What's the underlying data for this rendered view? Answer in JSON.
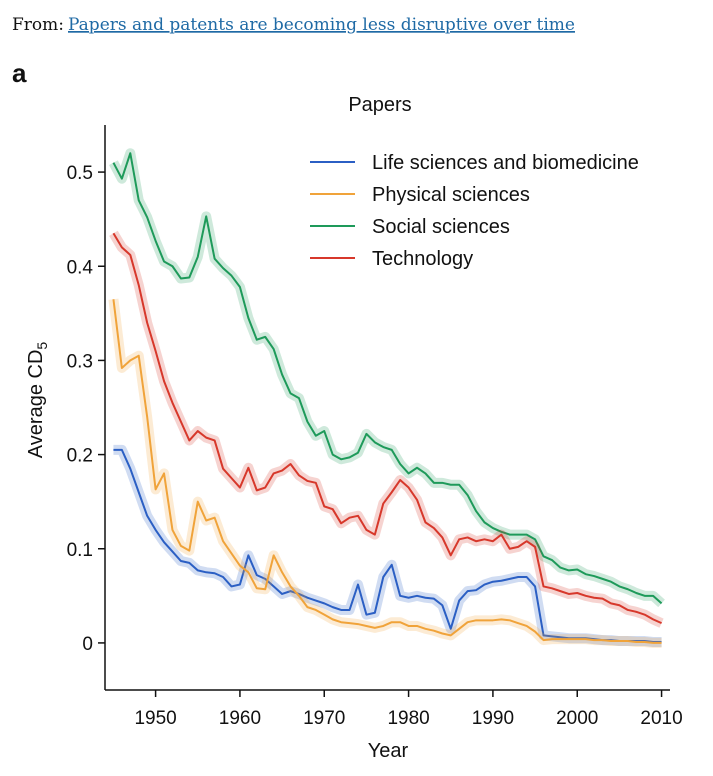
{
  "header": {
    "prefix": "From:",
    "link": "Papers and patents are becoming less disruptive over time"
  },
  "panel_label": "a",
  "chart_data": {
    "type": "line",
    "title": "Papers",
    "x_label": "Year",
    "y_label": "Average CD",
    "y_label_subscript": "5",
    "x": [
      1945,
      1946,
      1947,
      1948,
      1949,
      1950,
      1951,
      1952,
      1953,
      1954,
      1955,
      1956,
      1957,
      1958,
      1959,
      1960,
      1961,
      1962,
      1963,
      1964,
      1965,
      1966,
      1967,
      1968,
      1969,
      1970,
      1971,
      1972,
      1973,
      1974,
      1975,
      1976,
      1977,
      1978,
      1979,
      1980,
      1981,
      1982,
      1983,
      1984,
      1985,
      1986,
      1987,
      1988,
      1989,
      1990,
      1991,
      1992,
      1993,
      1994,
      1995,
      1996,
      1997,
      1998,
      1999,
      2000,
      2001,
      2002,
      2003,
      2004,
      2005,
      2006,
      2007,
      2008,
      2009,
      2010
    ],
    "xlim": [
      1944,
      2011
    ],
    "xticks": [
      1950,
      1960,
      1970,
      1980,
      1990,
      2000,
      2010
    ],
    "ylim": [
      -0.05,
      0.55
    ],
    "yticks": [
      0,
      0.1,
      0.2,
      0.3,
      0.4,
      0.5
    ],
    "legend": "upper right",
    "series": [
      {
        "name": "Life sciences and biomedicine",
        "color": "#2b5fc4",
        "values": [
          0.205,
          0.205,
          0.185,
          0.16,
          0.135,
          0.12,
          0.107,
          0.097,
          0.087,
          0.085,
          0.077,
          0.075,
          0.074,
          0.07,
          0.06,
          0.062,
          0.093,
          0.072,
          0.068,
          0.06,
          0.052,
          0.055,
          0.052,
          0.048,
          0.045,
          0.042,
          0.038,
          0.035,
          0.035,
          0.062,
          0.03,
          0.032,
          0.07,
          0.083,
          0.05,
          0.048,
          0.05,
          0.048,
          0.047,
          0.04,
          0.015,
          0.045,
          0.055,
          0.056,
          0.062,
          0.065,
          0.066,
          0.068,
          0.07,
          0.07,
          0.06,
          0.008,
          0.007,
          0.006,
          0.005,
          0.005,
          0.005,
          0.004,
          0.003,
          0.003,
          0.002,
          0.002,
          0.002,
          0.002,
          0.001,
          0.001
        ]
      },
      {
        "name": "Physical sciences",
        "color": "#f0a33a",
        "values": [
          0.365,
          0.292,
          0.3,
          0.305,
          0.24,
          0.163,
          0.18,
          0.12,
          0.103,
          0.098,
          0.15,
          0.13,
          0.133,
          0.108,
          0.095,
          0.082,
          0.075,
          0.058,
          0.057,
          0.093,
          0.075,
          0.06,
          0.05,
          0.038,
          0.035,
          0.03,
          0.025,
          0.022,
          0.021,
          0.02,
          0.018,
          0.016,
          0.018,
          0.022,
          0.022,
          0.018,
          0.018,
          0.015,
          0.013,
          0.01,
          0.008,
          0.015,
          0.022,
          0.024,
          0.024,
          0.024,
          0.025,
          0.024,
          0.021,
          0.018,
          0.012,
          0.003,
          0.004,
          0.004,
          0.004,
          0.004,
          0.004,
          0.003,
          0.003,
          0.002,
          0.002,
          0.002,
          0.001,
          0.001,
          0,
          0
        ]
      },
      {
        "name": "Social sciences",
        "color": "#1e9a5a",
        "values": [
          0.51,
          0.493,
          0.52,
          0.47,
          0.452,
          0.427,
          0.405,
          0.4,
          0.387,
          0.388,
          0.41,
          0.453,
          0.408,
          0.398,
          0.39,
          0.378,
          0.345,
          0.322,
          0.325,
          0.312,
          0.285,
          0.265,
          0.26,
          0.235,
          0.22,
          0.225,
          0.2,
          0.195,
          0.197,
          0.202,
          0.222,
          0.213,
          0.208,
          0.205,
          0.19,
          0.18,
          0.186,
          0.18,
          0.17,
          0.17,
          0.168,
          0.168,
          0.157,
          0.14,
          0.128,
          0.122,
          0.118,
          0.115,
          0.115,
          0.115,
          0.11,
          0.092,
          0.088,
          0.08,
          0.077,
          0.078,
          0.073,
          0.071,
          0.068,
          0.065,
          0.06,
          0.057,
          0.053,
          0.05,
          0.05,
          0.042
        ]
      },
      {
        "name": "Technology",
        "color": "#d7382b",
        "values": [
          0.435,
          0.42,
          0.412,
          0.38,
          0.34,
          0.31,
          0.278,
          0.255,
          0.235,
          0.215,
          0.225,
          0.218,
          0.215,
          0.185,
          0.175,
          0.165,
          0.186,
          0.162,
          0.165,
          0.18,
          0.183,
          0.19,
          0.178,
          0.172,
          0.17,
          0.145,
          0.142,
          0.127,
          0.133,
          0.135,
          0.12,
          0.115,
          0.148,
          0.16,
          0.173,
          0.165,
          0.152,
          0.128,
          0.122,
          0.112,
          0.093,
          0.11,
          0.112,
          0.108,
          0.11,
          0.108,
          0.115,
          0.1,
          0.102,
          0.108,
          0.102,
          0.06,
          0.058,
          0.055,
          0.052,
          0.053,
          0.05,
          0.048,
          0.047,
          0.042,
          0.04,
          0.035,
          0.033,
          0.03,
          0.025,
          0.021
        ]
      }
    ]
  }
}
